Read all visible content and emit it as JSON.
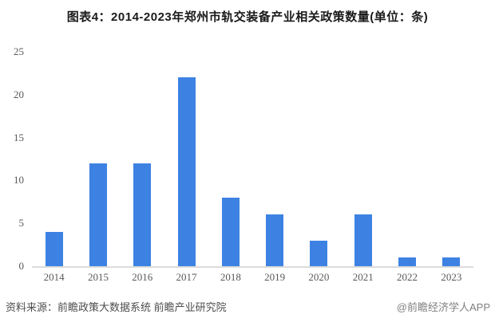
{
  "title": "图表4：2014-2023年郑州市轨交装备产业相关政策数量(单位：条)",
  "chart_data": {
    "type": "bar",
    "title": "图表4：2014-2023年郑州市轨交装备产业相关政策数量(单位：条)",
    "categories": [
      "2014",
      "2015",
      "2016",
      "2017",
      "2018",
      "2019",
      "2020",
      "2021",
      "2022",
      "2023"
    ],
    "values": [
      4,
      12,
      12,
      22,
      8,
      6,
      3,
      6,
      1,
      1
    ],
    "xlabel": "",
    "ylabel": "",
    "ylim": [
      0,
      25
    ],
    "yticks": [
      0,
      5,
      10,
      15,
      20,
      25
    ],
    "grid": false,
    "legend": "none",
    "bar_color": "#3D82E3",
    "axis_color": "#DCDCDC",
    "tick_label_color": "#595959"
  },
  "footer": {
    "source": "资料来源：前瞻政策大数据系统 前瞻产业研究院",
    "watermark": "@前瞻经济学人APP"
  }
}
